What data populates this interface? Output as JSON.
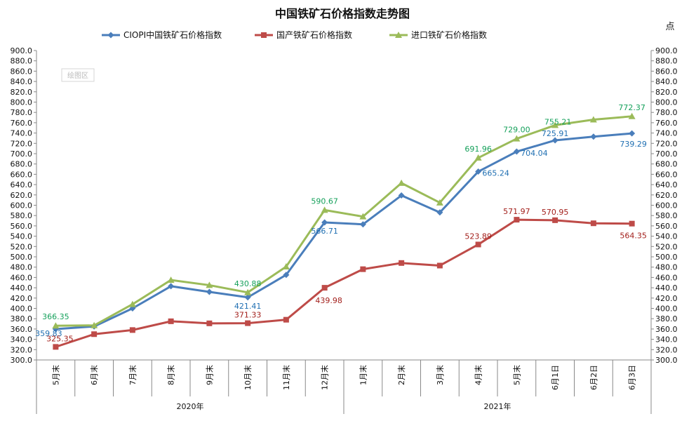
{
  "chart_data": {
    "type": "line",
    "title": "中国铁矿石价格指数走势图",
    "unit_label": "点",
    "watermark": "绘图区",
    "categories": [
      "5月末",
      "6月末",
      "7月末",
      "8月末",
      "9月末",
      "10月末",
      "11月末",
      "12月末",
      "1月末",
      "2月末",
      "3月末",
      "4月末",
      "5月末",
      "6月1日",
      "6月2日",
      "6月3日"
    ],
    "groups": [
      {
        "label": "2020年",
        "start": 0,
        "end": 7
      },
      {
        "label": "2021年",
        "start": 8,
        "end": 15
      }
    ],
    "ylim": [
      300,
      900
    ],
    "ytick_step": 20,
    "grid": false,
    "legend_position": "top",
    "series": [
      {
        "name": "CIOPI中国铁矿石价格指数",
        "color": "#4a7ebb",
        "label_color": "#1f6fb2",
        "marker": "diamond",
        "values": [
          359.83,
          365,
          400,
          443,
          432,
          421.41,
          465,
          566.71,
          563,
          619,
          586,
          665.24,
          704.04,
          725.91,
          733,
          739.29
        ],
        "labels": {
          "0": "359.83",
          "5": "421.41",
          "7": "566.71",
          "11": "665.24",
          "12": "704.04",
          "13": "725.91",
          "15": "739.29"
        }
      },
      {
        "name": "国产铁矿石价格指数",
        "color": "#be4b48",
        "label_color": "#a3201c",
        "marker": "square",
        "values": [
          325.35,
          350,
          358,
          375,
          371,
          371.33,
          378,
          439.98,
          476,
          488,
          483,
          523.89,
          571.97,
          570.95,
          565,
          564.35
        ],
        "labels": {
          "0": "325.35",
          "5": "371.33",
          "7": "439.98",
          "11": "523.89",
          "12": "571.97",
          "13": "570.95",
          "15": "564.35"
        }
      },
      {
        "name": "进口铁矿石价格指数",
        "color": "#9bbb59",
        "label_color": "#14a05a",
        "marker": "triangle",
        "values": [
          366.35,
          367,
          408,
          455,
          445,
          430.88,
          481,
          590.67,
          578,
          643,
          605,
          691.96,
          729.0,
          755.21,
          766,
          772.37
        ],
        "labels": {
          "0": "366.35",
          "5": "430.88",
          "7": "590.67",
          "11": "691.96",
          "12": "729.00",
          "13": "755.21",
          "15": "772.37"
        }
      }
    ]
  }
}
